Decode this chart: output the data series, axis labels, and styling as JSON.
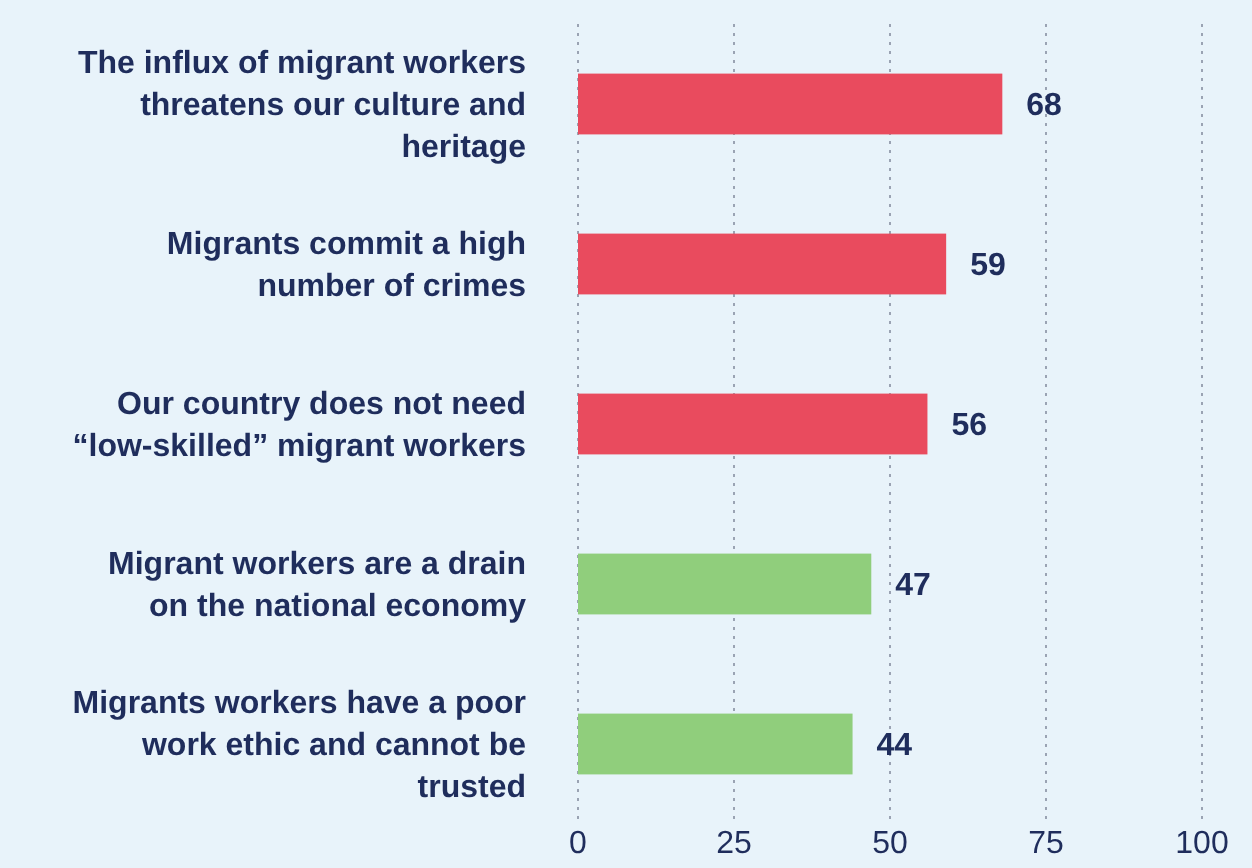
{
  "chart_data": {
    "type": "bar",
    "orientation": "horizontal",
    "categories": [
      "The influx of migrant workers threatens our culture and heritage",
      "Migrants commit a high number of crimes",
      "Our country does not need “low-skilled” migrant workers",
      "Migrant workers are a drain on the national economy",
      "Migrants workers have a poor work ethic and cannot be trusted"
    ],
    "values": [
      68,
      59,
      56,
      47,
      44
    ],
    "colors": [
      "#e94b5e",
      "#e94b5e",
      "#e94b5e",
      "#90ce7c",
      "#90ce7c"
    ],
    "xlim": [
      0,
      100
    ],
    "xticks": [
      0,
      25,
      50,
      75,
      100
    ],
    "grid": "x",
    "data_labels": true
  }
}
